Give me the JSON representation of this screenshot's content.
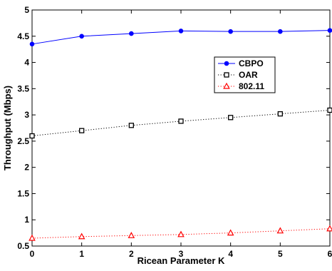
{
  "chart_data": {
    "type": "line",
    "xlabel": "Ricean Parameter K",
    "ylabel": "Throughput (Mbps)",
    "xlim": [
      0,
      6
    ],
    "ylim": [
      0.5,
      5
    ],
    "x_ticks": [
      0,
      1,
      2,
      3,
      4,
      5,
      6
    ],
    "y_ticks": [
      0.5,
      1,
      1.5,
      2,
      2.5,
      3,
      3.5,
      4,
      4.5,
      5
    ],
    "grid": false,
    "legend_position": "upper-right",
    "x": [
      0,
      1,
      2,
      3,
      4,
      5,
      6
    ],
    "series": [
      {
        "name": "CBPO",
        "values": [
          4.35,
          4.5,
          4.55,
          4.6,
          4.59,
          4.59,
          4.61
        ],
        "color": "#0000ff",
        "line_style": "solid",
        "marker": "filled-circle"
      },
      {
        "name": "OAR",
        "values": [
          2.6,
          2.7,
          2.8,
          2.88,
          2.95,
          3.02,
          3.09
        ],
        "color": "#000000",
        "line_style": "dotted",
        "marker": "open-square"
      },
      {
        "name": "802.11",
        "values": [
          0.65,
          0.68,
          0.7,
          0.72,
          0.75,
          0.79,
          0.83
        ],
        "color": "#ff0000",
        "line_style": "dotted",
        "marker": "open-triangle"
      }
    ]
  }
}
